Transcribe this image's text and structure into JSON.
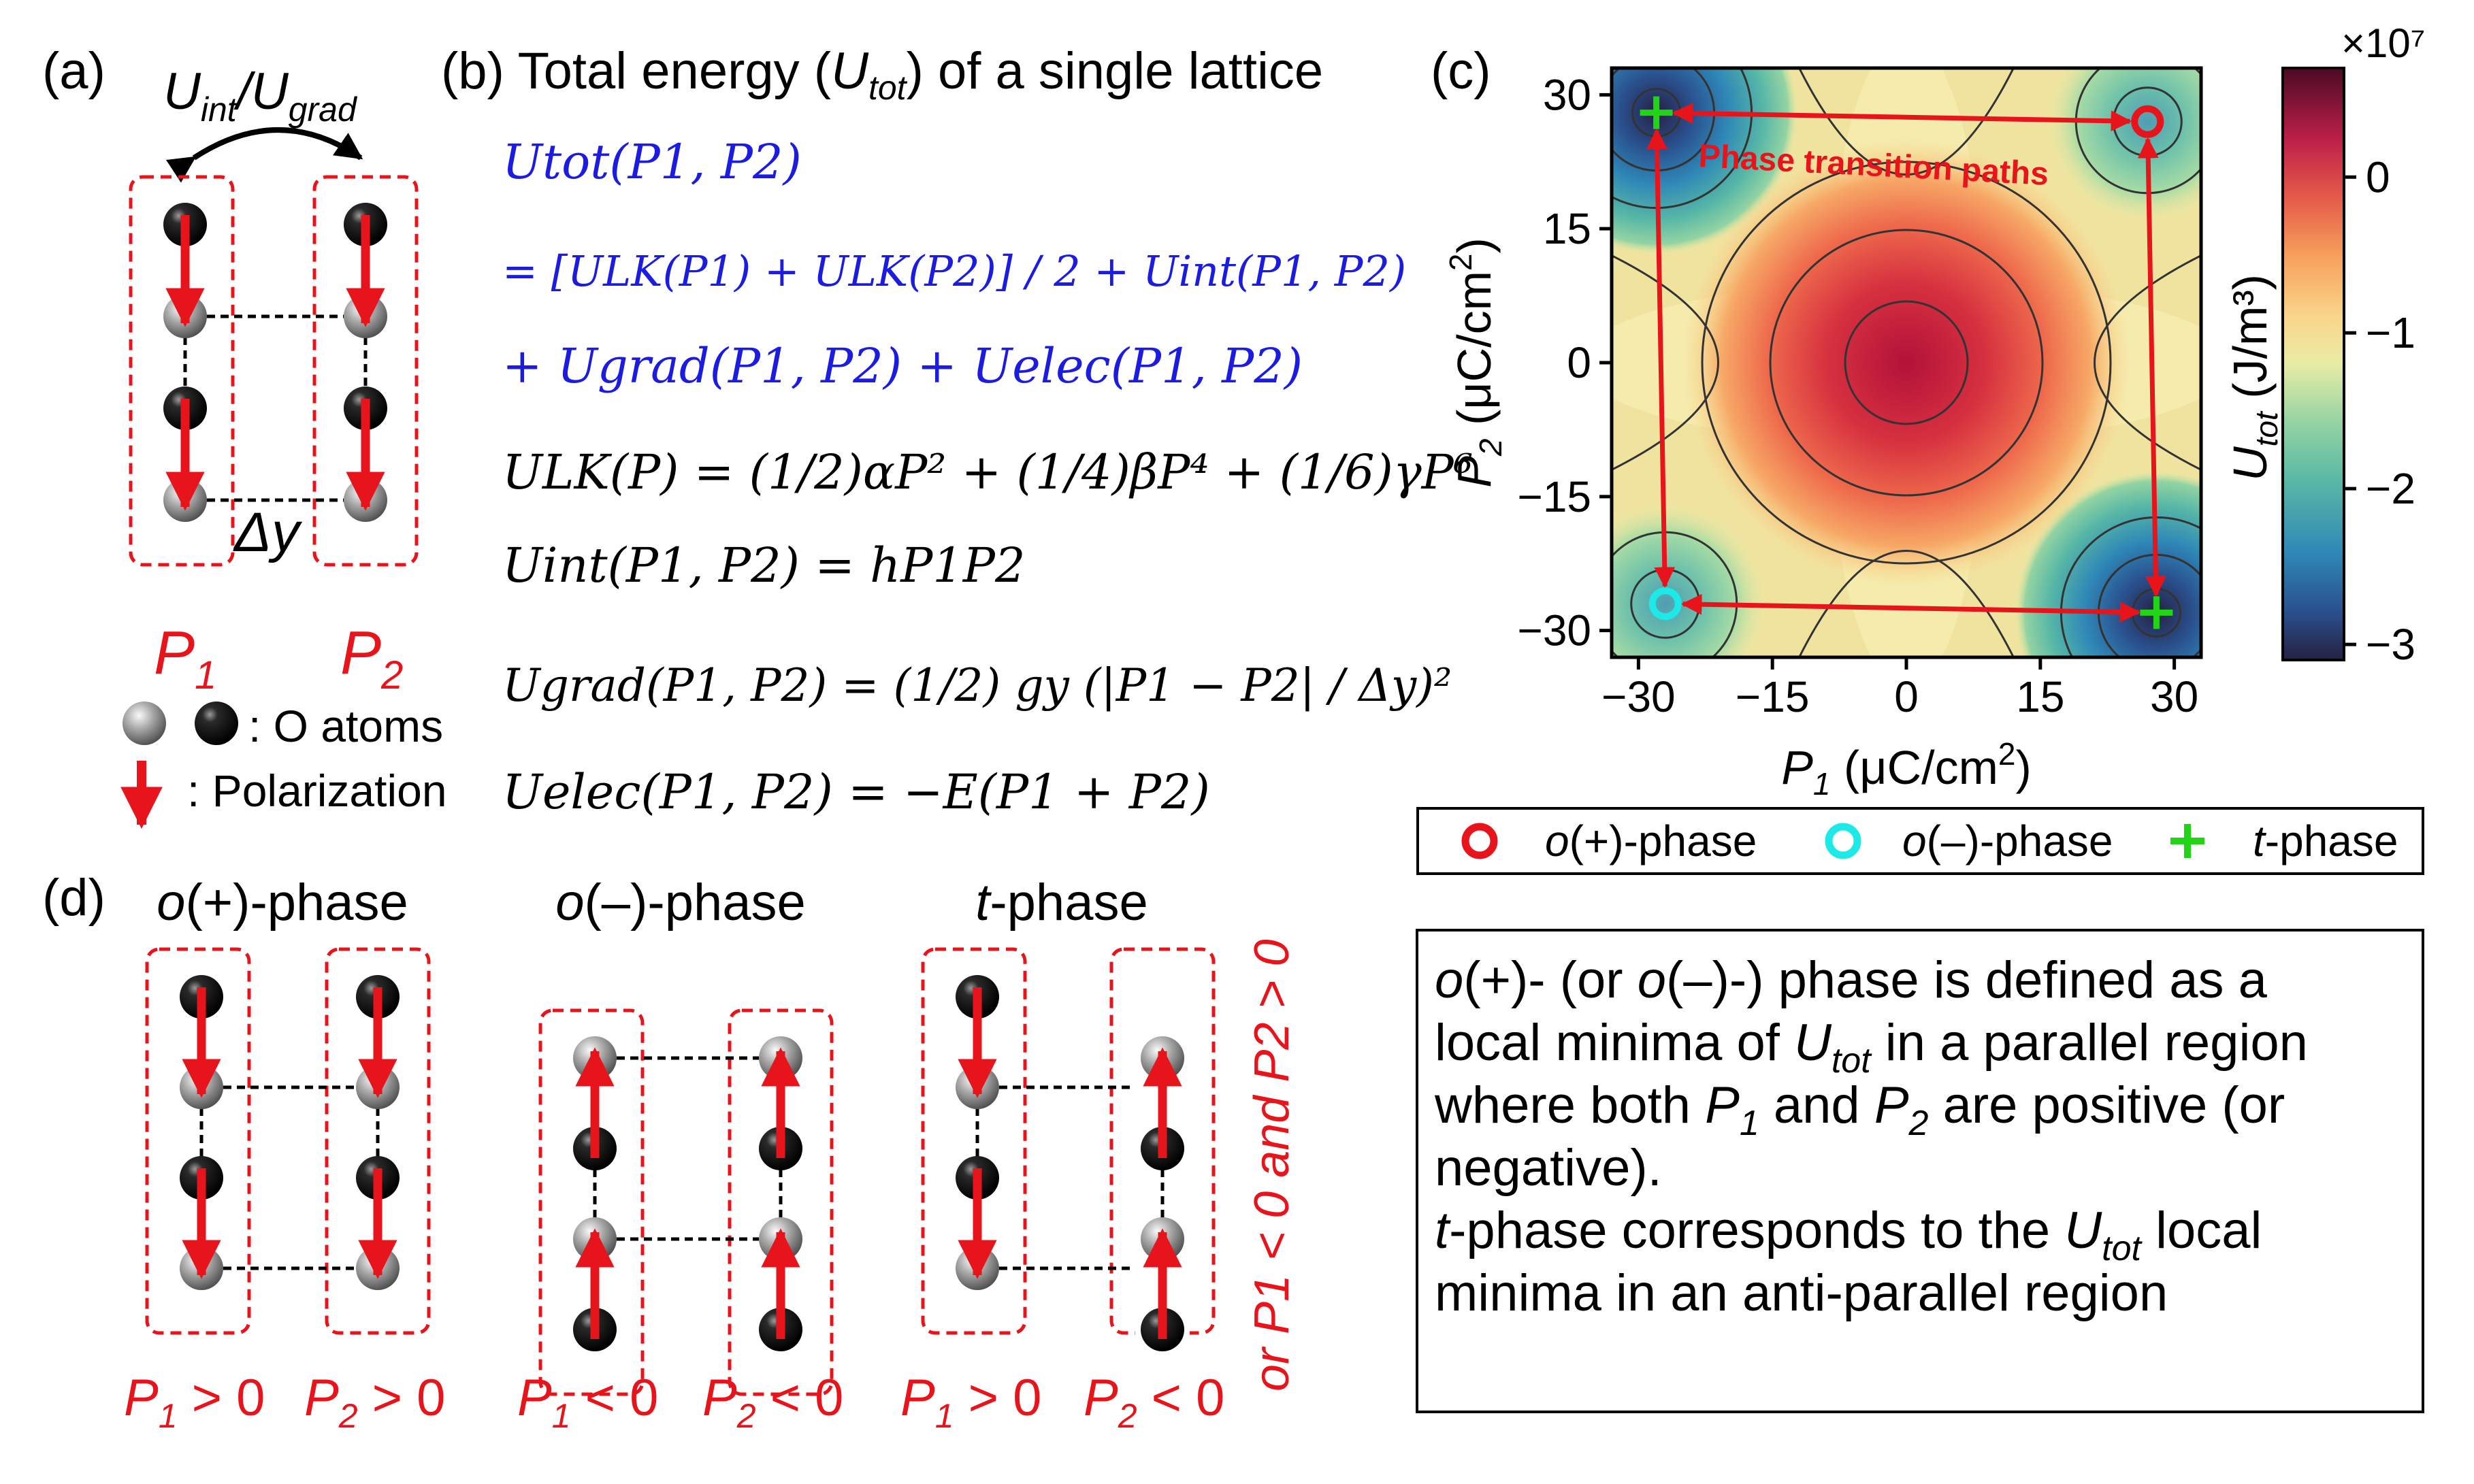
{
  "panel_a": {
    "label": "(a)",
    "interaction": "Uint/Ugrad",
    "interaction_parts": [
      "U",
      "int",
      "/U",
      "grad"
    ],
    "dy_label": "Δy",
    "p1_label": [
      "P",
      "1"
    ],
    "p2_label": [
      "P",
      "2"
    ],
    "legend_o_atoms": ": O atoms",
    "legend_polarization": ": Polarization"
  },
  "panel_b": {
    "label": "(b)",
    "title_pre": "Total energy (",
    "title_sym": "U",
    "title_sub": "tot",
    "title_post": ") of a single lattice",
    "eq_total": [
      "Utot(P1, P2)",
      "= [ULK(P1) + ULK(P2)] / 2 + Uint(P1, P2)",
      "+ Ugrad(P1, P2) + Uelec(P1, P2)"
    ],
    "eq_lk": "ULK(P) = (1/2)αP² + (1/4)βP⁴ + (1/6)γP⁶",
    "eq_int": "Uint(P1, P2) = hP1P2",
    "eq_grad": "Ugrad(P1, P2) = (1/2) gy (|P1 − P2| / Δy)²",
    "eq_elec": "Uelec(P1, P2) = −E(P1 + P2)"
  },
  "panel_c": {
    "label": "(c)",
    "path_label": "Phase transition paths",
    "colorbar_exponent": "×10⁷",
    "colorbar_ticks": [
      "0",
      "−1",
      "−2",
      "−3"
    ],
    "colorbar_label_sym": "U",
    "colorbar_label_sub": "tot",
    "colorbar_label_unit": " (J/m³)",
    "legend": [
      {
        "prefix": "o",
        "suffix": "(+)-phase",
        "color": "#e8141b"
      },
      {
        "prefix": "o",
        "suffix": "(–)-phase",
        "color": "#1de9e9"
      },
      {
        "prefix": "t",
        "suffix": "-phase",
        "color": "#22d416"
      }
    ]
  },
  "chart_data": {
    "type": "heatmap",
    "title": "",
    "xlabel": "P1 (μC/cm²)",
    "ylabel": "P2 (μC/cm²)",
    "xlim": [
      -33,
      33
    ],
    "ylim": [
      -33,
      33
    ],
    "x_ticks": [
      -30,
      -15,
      0,
      15,
      30
    ],
    "y_ticks": [
      -30,
      -15,
      0,
      15,
      30
    ],
    "z_label": "Utot (J/m³)",
    "z_scale": 10000000,
    "zlim": [
      -3.1,
      0.7
    ],
    "points": [
      {
        "phase": "o(+)",
        "x": 27,
        "y": 27
      },
      {
        "phase": "o(−)",
        "x": -27,
        "y": -27
      },
      {
        "phase": "t",
        "x": -28,
        "y": 28
      },
      {
        "phase": "t",
        "x": 28,
        "y": -28
      }
    ],
    "paths": [
      {
        "from": [
          -28,
          28
        ],
        "to": [
          27,
          27
        ]
      },
      {
        "from": [
          27,
          27
        ],
        "to": [
          28,
          -28
        ]
      },
      {
        "from": [
          28,
          -28
        ],
        "to": [
          -27,
          -27
        ]
      },
      {
        "from": [
          -27,
          -27
        ],
        "to": [
          -28,
          28
        ]
      }
    ]
  },
  "panel_d": {
    "label": "(d)",
    "phases": [
      {
        "pre": "o",
        "post": "(+)-phase",
        "cond1": " > 0",
        "cond2": " > 0"
      },
      {
        "pre": "o",
        "post": "(–)-phase",
        "cond1": " < 0",
        "cond2": " < 0"
      },
      {
        "pre": "t",
        "post": "-phase",
        "cond1": " > 0",
        "cond2": " < 0"
      }
    ],
    "alt_condition": "or P1 < 0 and P2 > 0"
  },
  "description": {
    "line1_parts": [
      "o",
      "(+)- (or ",
      "o",
      "(–)-) phase is defined as a"
    ],
    "line2_parts": [
      "local minima of ",
      "U",
      "tot",
      " in a parallel region"
    ],
    "line3_parts": [
      "where both ",
      "P",
      "1",
      " and ",
      "P",
      "2",
      " are positive (or"
    ],
    "line4": "negative).",
    "line5_parts": [
      "t",
      "-phase corresponds to the ",
      "U",
      "tot",
      " local"
    ],
    "line6": "minima in an anti-parallel region"
  }
}
